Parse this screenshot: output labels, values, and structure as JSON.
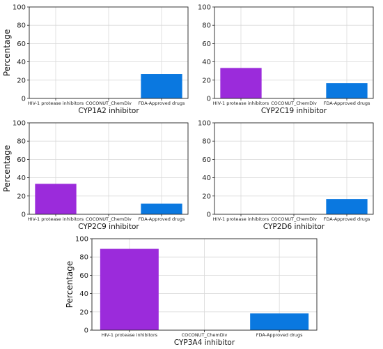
{
  "colors": {
    "hiv": "#9B2BDB",
    "coconut": "#9B2BDB",
    "fda": "#0A78E0"
  },
  "chart_data": [
    {
      "type": "bar",
      "xlabel": "CYP1A2 inhibitor",
      "ylabel": "Percentage",
      "categories": [
        "HIV-1 protease inhibitors",
        "COCONUT_ChemDiv",
        "FDA-Approved drugs"
      ],
      "values": [
        0,
        0,
        26.7
      ],
      "ylim": [
        0,
        100
      ],
      "yticks": [
        0,
        20,
        40,
        60,
        80,
        100
      ],
      "grid": true
    },
    {
      "type": "bar",
      "xlabel": "CYP2C19 inhibitor",
      "ylabel": "",
      "categories": [
        "HIV-1 protease inhibitors",
        "COCONUT_ChemDiv",
        "FDA-Approved drugs"
      ],
      "values": [
        33.3,
        0,
        16.7
      ],
      "ylim": [
        0,
        100
      ],
      "yticks": [
        0,
        20,
        40,
        60,
        80,
        100
      ],
      "grid": true
    },
    {
      "type": "bar",
      "xlabel": "CYP2C9 inhibitor",
      "ylabel": "Percentage",
      "categories": [
        "HIV-1 protease inhibitors",
        "COCONUT_ChemDiv",
        "FDA-Approved drugs"
      ],
      "values": [
        33.3,
        0,
        11.7
      ],
      "ylim": [
        0,
        100
      ],
      "yticks": [
        0,
        20,
        40,
        60,
        80,
        100
      ],
      "grid": true
    },
    {
      "type": "bar",
      "xlabel": "CYP2D6 inhibitor",
      "ylabel": "",
      "categories": [
        "HIV-1 protease inhibitors",
        "COCONUT_ChemDiv",
        "FDA-Approved drugs"
      ],
      "values": [
        0,
        0,
        16.7
      ],
      "ylim": [
        0,
        100
      ],
      "yticks": [
        0,
        20,
        40,
        60,
        80,
        100
      ],
      "grid": true
    },
    {
      "type": "bar",
      "xlabel": "CYP3A4 inhibitor",
      "ylabel": "Percentage",
      "categories": [
        "HIV-1 protease inhibitors",
        "COCONUT_ChemDiv",
        "FDA-Approved drugs"
      ],
      "values": [
        88.9,
        0,
        18.3
      ],
      "ylim": [
        0,
        100
      ],
      "yticks": [
        0,
        20,
        40,
        60,
        80,
        100
      ],
      "grid": true
    }
  ]
}
